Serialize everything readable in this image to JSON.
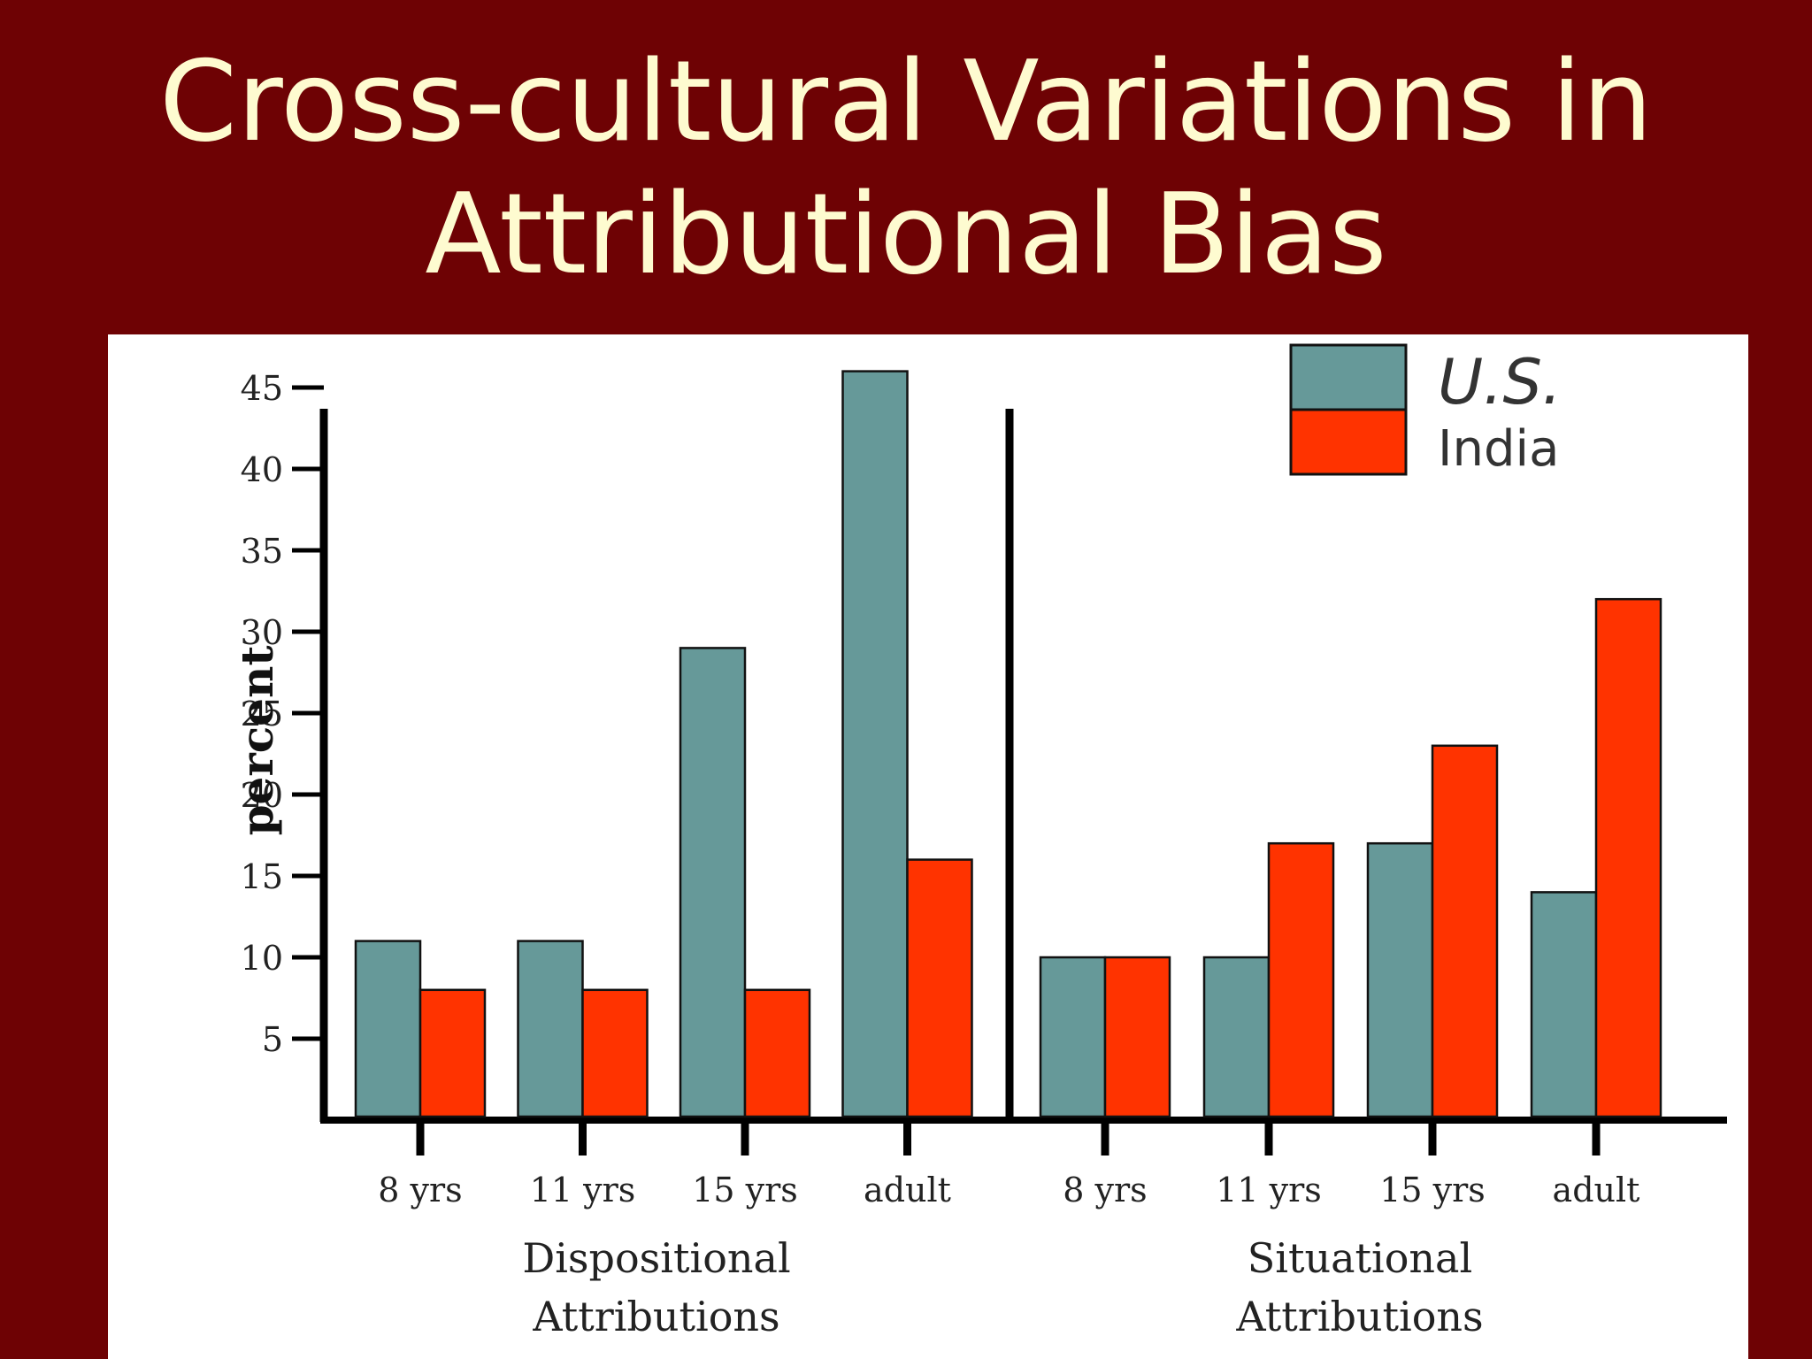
{
  "slide": {
    "title_line1": "Cross-cultural Variations in",
    "title_line2": "Attributional Bias",
    "background": "#6e0204",
    "title_color": "#fefbd0"
  },
  "chart_data": {
    "type": "bar",
    "title": "",
    "ylabel": "percent",
    "ylim": [
      0,
      47
    ],
    "yticks": [
      5,
      10,
      15,
      20,
      25,
      30,
      35,
      40,
      45
    ],
    "grid": false,
    "legend_placement": "top-right",
    "groups": [
      {
        "label_line1": "Dispositional",
        "label_line2": "Attributions",
        "categories": [
          "8 yrs",
          "11 yrs",
          "15 yrs",
          "adult"
        ],
        "series": [
          {
            "name": "U.S.",
            "color": "#669999",
            "values": [
              11,
              11,
              29,
              46
            ]
          },
          {
            "name": "India",
            "color": "#ff3300",
            "values": [
              8,
              8,
              8,
              16
            ]
          }
        ]
      },
      {
        "label_line1": "Situational",
        "label_line2": "Attributions",
        "categories": [
          "8 yrs",
          "11 yrs",
          "15 yrs",
          "adult"
        ],
        "series": [
          {
            "name": "U.S.",
            "color": "#669999",
            "values": [
              10,
              10,
              17,
              14
            ]
          },
          {
            "name": "India",
            "color": "#ff3300",
            "values": [
              10,
              17,
              23,
              32
            ]
          }
        ]
      }
    ],
    "legend": [
      {
        "name": "U.S.",
        "color": "#669999"
      },
      {
        "name": "India",
        "color": "#ff3300"
      }
    ]
  }
}
